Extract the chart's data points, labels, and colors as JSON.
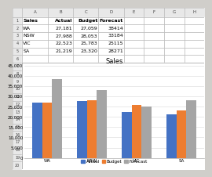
{
  "title": "Sales",
  "categories": [
    "WA",
    "NSW",
    "VIC",
    "SA"
  ],
  "series": {
    "Actual": [
      27181,
      27988,
      22523,
      21219
    ],
    "Budget": [
      27059,
      28053,
      25783,
      23320
    ],
    "Forecast": [
      38414,
      33184,
      25115,
      28271
    ]
  },
  "colors": {
    "Actual": "#4472C4",
    "Budget": "#ED7D31",
    "Forecast": "#A5A5A5"
  },
  "table_headers": [
    "Sales",
    "Actual",
    "Budget",
    "Forecast"
  ],
  "table_data": [
    [
      "WA",
      "27,181",
      "27,059",
      "38414"
    ],
    [
      "NSW",
      "27,988",
      "28,053",
      "33184"
    ],
    [
      "VIC",
      "22,523",
      "25,783",
      "25115"
    ],
    [
      "SA",
      "21,219",
      "23,320",
      "28271"
    ]
  ],
  "col_headers": [
    "",
    "A",
    "B",
    "C",
    "D",
    "E",
    "F",
    "G",
    "H"
  ],
  "row_headers": [
    "1",
    "2",
    "3",
    "4",
    "5",
    "6",
    "7",
    "8",
    "9",
    "10",
    "11",
    "12",
    "13",
    "14",
    "15",
    "16",
    "17",
    "18",
    "19",
    "20"
  ],
  "ylim": [
    0,
    45000
  ],
  "yticks": [
    0,
    5000,
    10000,
    15000,
    20000,
    25000,
    30000,
    35000,
    40000,
    45000
  ],
  "ytick_labels": [
    "0",
    "5,000",
    "10,000",
    "15,000",
    "20,000",
    "25,000",
    "30,000",
    "35,000",
    "40,000",
    "45,000"
  ],
  "bar_width": 0.22,
  "background_color": "#D0CECA",
  "excel_bg": "#F2F2F2",
  "cell_bg": "#FFFFFF",
  "header_bg": "#E8E8E8",
  "grid_color": "#C0C0C0",
  "chart_bg": "#FFFFFF",
  "title_fontsize": 6,
  "tick_fontsize": 4,
  "legend_fontsize": 4,
  "table_fontsize": 4.5
}
